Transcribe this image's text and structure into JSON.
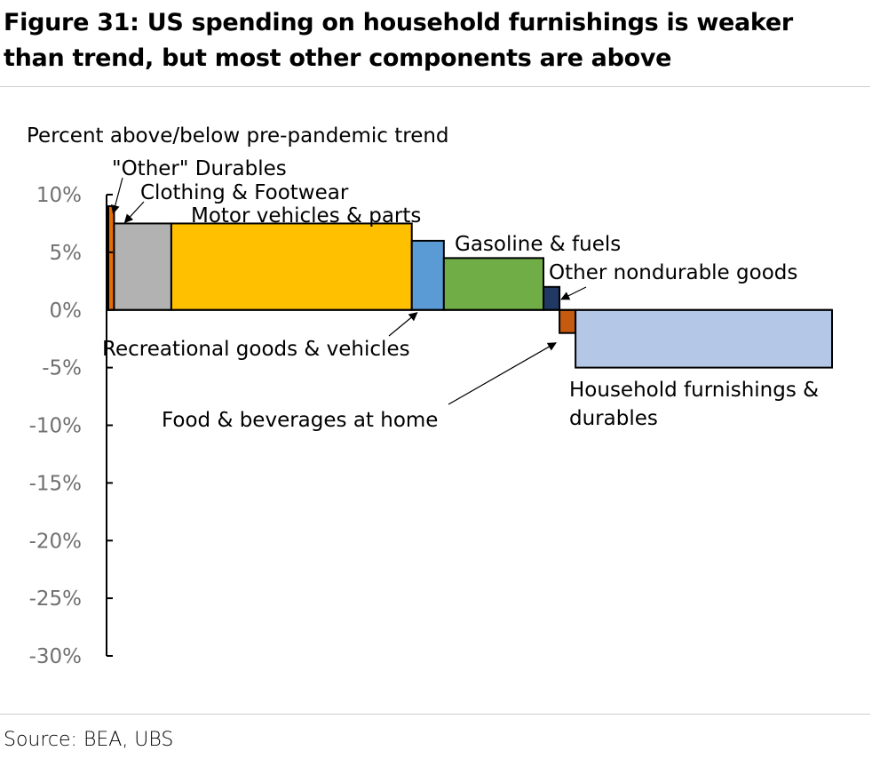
{
  "title_lines": [
    "Figure 31: US spending on household furnishings is weaker",
    "than trend, but most other components are above"
  ],
  "source": "Source: BEA, UBS",
  "chart_data": {
    "type": "bar",
    "variable_width": true,
    "ylabel": "Percent above/below pre-pandemic trend",
    "ylim": [
      -30,
      10
    ],
    "yticks": [
      10,
      5,
      0,
      -5,
      -10,
      -15,
      -20,
      -25,
      -30
    ],
    "ytick_labels": [
      "10%",
      "5%",
      "0%",
      "-5%",
      "-10%",
      "-15%",
      "-20%",
      "-25%",
      "-30%"
    ],
    "grid": false,
    "legend": "none",
    "categories": [
      "\"Other\" Durables",
      "Clothing & Footwear",
      "Motor vehicles & parts",
      "Recreational goods & vehicles",
      "Gasoline & fuels",
      "Other nondurable goods",
      "Food & beverages at home",
      "Household furnishings & durables"
    ],
    "values": [
      9.0,
      7.5,
      7.5,
      6.0,
      4.5,
      2.0,
      -2.0,
      -5.0
    ],
    "widths": [
      0.5,
      5.0,
      21.0,
      2.8,
      8.7,
      1.4,
      1.4,
      22.4
    ],
    "colors": [
      "#E46C0A",
      "#B2B2B2",
      "#FFC000",
      "#5B9BD5",
      "#70AD47",
      "#203864",
      "#C55A11",
      "#B4C7E7"
    ],
    "annotations": [
      {
        "lines": [
          "\"Other\" Durables"
        ]
      },
      {
        "lines": [
          "Clothing & Footwear"
        ]
      },
      {
        "lines": [
          "Motor vehicles & parts"
        ]
      },
      {
        "lines": [
          "Recreational goods & vehicles"
        ]
      },
      {
        "lines": [
          "Gasoline & fuels"
        ]
      },
      {
        "lines": [
          "Other nondurable goods"
        ]
      },
      {
        "lines": [
          "Food & beverages at home"
        ]
      },
      {
        "lines": [
          "Household furnishings &",
          "durables"
        ]
      }
    ]
  }
}
